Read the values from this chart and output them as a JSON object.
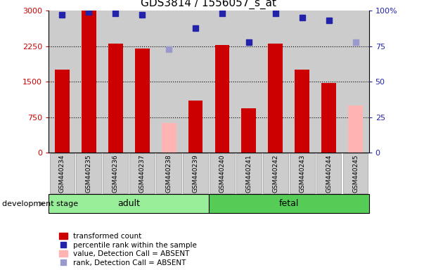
{
  "title": "GDS3814 / 1556057_s_at",
  "samples": [
    "GSM440234",
    "GSM440235",
    "GSM440236",
    "GSM440237",
    "GSM440238",
    "GSM440239",
    "GSM440240",
    "GSM440241",
    "GSM440242",
    "GSM440243",
    "GSM440244",
    "GSM440245"
  ],
  "red_values": [
    1750,
    3000,
    2300,
    2200,
    null,
    1100,
    2280,
    940,
    2300,
    1750,
    1480,
    null
  ],
  "pink_values": [
    null,
    null,
    null,
    null,
    620,
    null,
    null,
    null,
    null,
    null,
    null,
    1000
  ],
  "blue_ranks": [
    97,
    99,
    98,
    97,
    null,
    88,
    98,
    78,
    98,
    95,
    93,
    null
  ],
  "pink_ranks": [
    null,
    null,
    null,
    null,
    73,
    null,
    null,
    null,
    null,
    null,
    null,
    78
  ],
  "ylim_left": [
    0,
    3000
  ],
  "ylim_right": [
    0,
    100
  ],
  "yticks_left": [
    0,
    750,
    1500,
    2250,
    3000
  ],
  "yticks_right": [
    0,
    25,
    50,
    75,
    100
  ],
  "red_color": "#CC0000",
  "pink_color": "#FFB3B3",
  "blue_color": "#2222AA",
  "light_blue_color": "#9999CC",
  "adult_color": "#99EE99",
  "fetal_color": "#55CC55",
  "bg_color": "#CCCCCC",
  "bar_width": 0.55,
  "grid_lines": [
    750,
    1500,
    2250
  ],
  "n_adult": 6,
  "n_fetal": 6
}
